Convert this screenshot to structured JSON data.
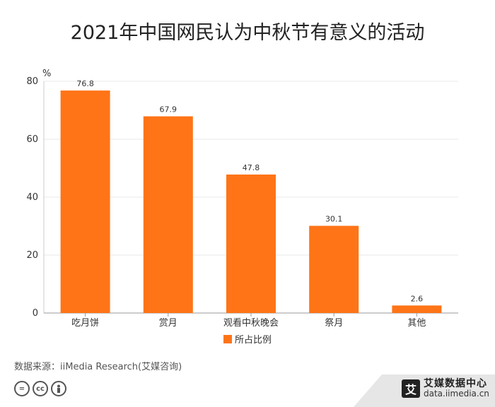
{
  "title": "2021年中国网民认为中秋节有意义的活动",
  "chart_data": {
    "type": "bar",
    "unit_label": "%",
    "categories": [
      "吃月饼",
      "赏月",
      "观看中秋晚会",
      "祭月",
      "其他"
    ],
    "series": [
      {
        "name": "所占比例",
        "values": [
          76.8,
          67.9,
          47.8,
          30.1,
          2.6
        ]
      }
    ],
    "ylim": [
      0,
      80
    ],
    "yticks": [
      0,
      20,
      40,
      60,
      80
    ],
    "grid": true,
    "legend_position": "bottom",
    "bar_color": "#FF7417"
  },
  "source": "数据来源：iiMedia Research(艾媒咨询)",
  "brand": {
    "logo": "艾",
    "name": "艾媒数据中心",
    "url": "data.iimedia.cn"
  },
  "icons": [
    "equals-icon",
    "cc-icon",
    "person-icon"
  ]
}
